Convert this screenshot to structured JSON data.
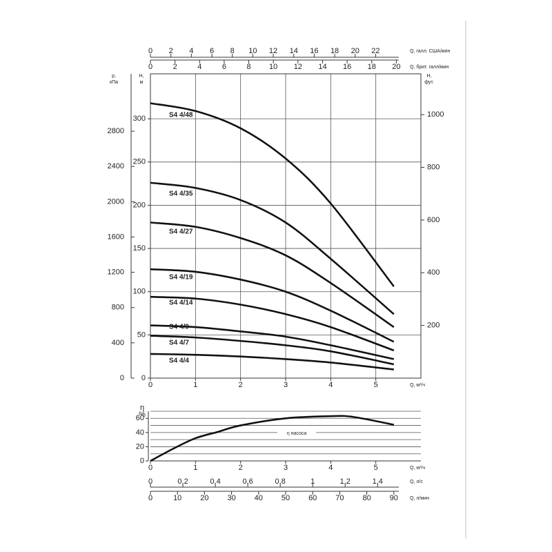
{
  "chart_data": [
    {
      "type": "line",
      "x_axes": [
        {
          "label": "Q, м³/ч",
          "xlim": [
            0,
            6
          ],
          "xticks": [
            0,
            1,
            2,
            3,
            4,
            5
          ]
        },
        {
          "label": "Q, галл. США/мин",
          "xlim": [
            0,
            26.42
          ],
          "xticks": [
            0,
            2,
            4,
            6,
            8,
            10,
            12,
            14,
            16,
            18,
            20,
            22
          ]
        },
        {
          "label": "Q, брит. галл/мин",
          "xlim": [
            0,
            22
          ],
          "xticks": [
            0,
            2,
            4,
            6,
            8,
            10,
            12,
            14,
            16,
            18,
            20
          ]
        }
      ],
      "y_axes": [
        {
          "label": [
            "H,",
            "м"
          ],
          "ylim": [
            0,
            352
          ],
          "yticks": [
            0,
            50,
            100,
            150,
            200,
            250,
            300
          ]
        },
        {
          "label": [
            "p,",
            "кПа"
          ],
          "ylim": [
            0,
            3450
          ],
          "yticks": [
            0,
            400,
            800,
            1200,
            1600,
            2000,
            2400,
            2800
          ]
        },
        {
          "label": [
            "H,",
            "фут."
          ],
          "ylim": [
            0,
            1155
          ],
          "yticks": [
            200,
            400,
            600,
            800,
            1000
          ]
        }
      ],
      "x": [
        0,
        1,
        2,
        3,
        4,
        5.4
      ],
      "series": [
        {
          "name": "S4 4/48",
          "color": "#111111",
          "values": [
            318,
            309,
            289,
            254,
            202,
            106
          ]
        },
        {
          "name": "S4 4/35",
          "color": "#111111",
          "values": [
            226,
            220,
            206,
            180,
            138,
            74
          ]
        },
        {
          "name": "S4 4/27",
          "color": "#111111",
          "values": [
            180,
            175,
            162,
            142,
            110,
            59
          ]
        },
        {
          "name": "S4 4/19",
          "color": "#111111",
          "values": [
            126,
            123,
            114,
            100,
            78,
            42
          ]
        },
        {
          "name": "S4 4/14",
          "color": "#111111",
          "values": [
            94,
            92,
            85,
            74,
            59,
            32
          ]
        },
        {
          "name": "S4 4/9",
          "color": "#111111",
          "values": [
            61,
            59,
            54,
            48,
            38,
            22
          ]
        },
        {
          "name": "S4 4/7",
          "color": "#111111",
          "values": [
            49,
            47,
            43,
            38,
            31,
            16
          ]
        },
        {
          "name": "S4 4/4",
          "color": "#111111",
          "values": [
            28,
            27,
            25,
            22,
            18,
            10
          ]
        }
      ],
      "grid": true
    },
    {
      "type": "line",
      "x_axes": [
        {
          "label": "Q, м³/ч",
          "xlim": [
            0,
            6
          ],
          "xticks": [
            0,
            1,
            2,
            3,
            4,
            5
          ]
        },
        {
          "label": "Q, л/с",
          "xlim": [
            0,
            1.6667
          ],
          "xticks": [
            0,
            {
              "value": 0.2,
              "label": "0,2"
            },
            {
              "value": 0.4,
              "label": "0,4"
            },
            {
              "value": 0.6,
              "label": "0,6"
            },
            {
              "value": 0.8,
              "label": "0,8"
            },
            1,
            {
              "value": 1.2,
              "label": "1,2"
            },
            {
              "value": 1.4,
              "label": "1,4"
            }
          ]
        },
        {
          "label": "Q, л/мин",
          "xlim": [
            0,
            100
          ],
          "xticks": [
            0,
            10,
            20,
            30,
            40,
            50,
            60,
            70,
            80,
            90
          ]
        }
      ],
      "y_axes": [
        {
          "label": [
            "η",
            "%"
          ],
          "ylim": [
            0,
            70
          ],
          "yticks": [
            0,
            20,
            40,
            60
          ],
          "ygrid": [
            0,
            10,
            20,
            30,
            40,
            50,
            60,
            70
          ]
        }
      ],
      "x": [
        0,
        0.5,
        1,
        1.5,
        2,
        3,
        4,
        4.5,
        5.4
      ],
      "series": [
        {
          "name": "η насоса",
          "color": "#111111",
          "values": [
            0,
            17,
            32,
            41,
            50,
            60,
            63,
            62,
            51
          ]
        }
      ],
      "grid": true
    }
  ]
}
